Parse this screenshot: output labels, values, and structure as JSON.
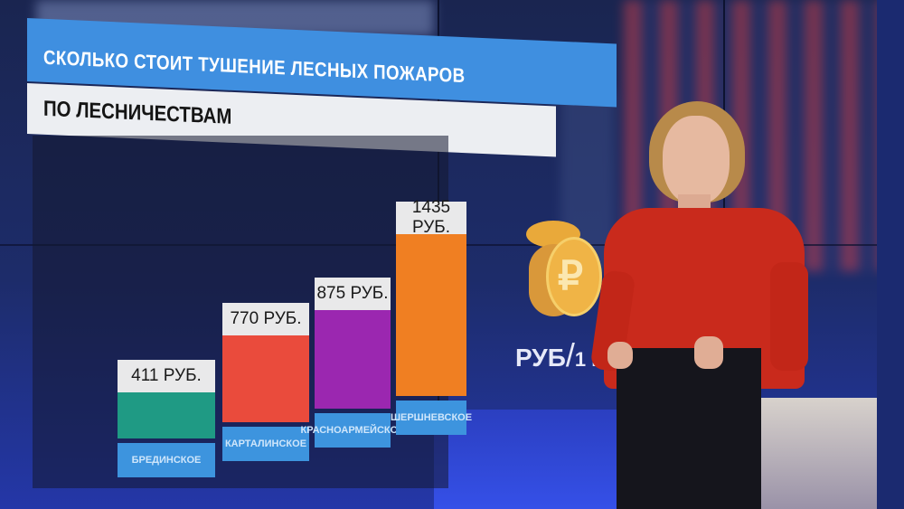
{
  "title": "СКОЛЬКО СТОИТ ТУШЕНИЕ ЛЕСНЫХ ПОЖАРОВ",
  "subtitle": "ПО ЛЕСНИЧЕСТВАМ",
  "unit": {
    "currency": "РУБ",
    "area": "1 ГА"
  },
  "icons": {
    "coins": "ruble-coins-icon"
  },
  "chart_data": {
    "type": "bar",
    "title": "СКОЛЬКО СТОИТ ТУШЕНИЕ ЛЕСНЫХ ПОЖАРОВ",
    "subtitle": "ПО ЛЕСНИЧЕСТВАМ",
    "unit": "РУБ/1 ГА",
    "categories": [
      "БРЕДИНСКОЕ",
      "КАРТАЛИНСКОЕ",
      "КРАСНОАРМЕЙСКОЕ",
      "ШЕРШНЕВСКОЕ"
    ],
    "values": [
      411,
      770,
      875,
      1435
    ],
    "labels": [
      "411 РУБ.",
      "770 РУБ.",
      "875 РУБ.",
      "1435 РУБ."
    ],
    "colors": [
      "#1f9a84",
      "#ea4b3c",
      "#9b27b0",
      "#f07f22"
    ],
    "grid": false
  }
}
